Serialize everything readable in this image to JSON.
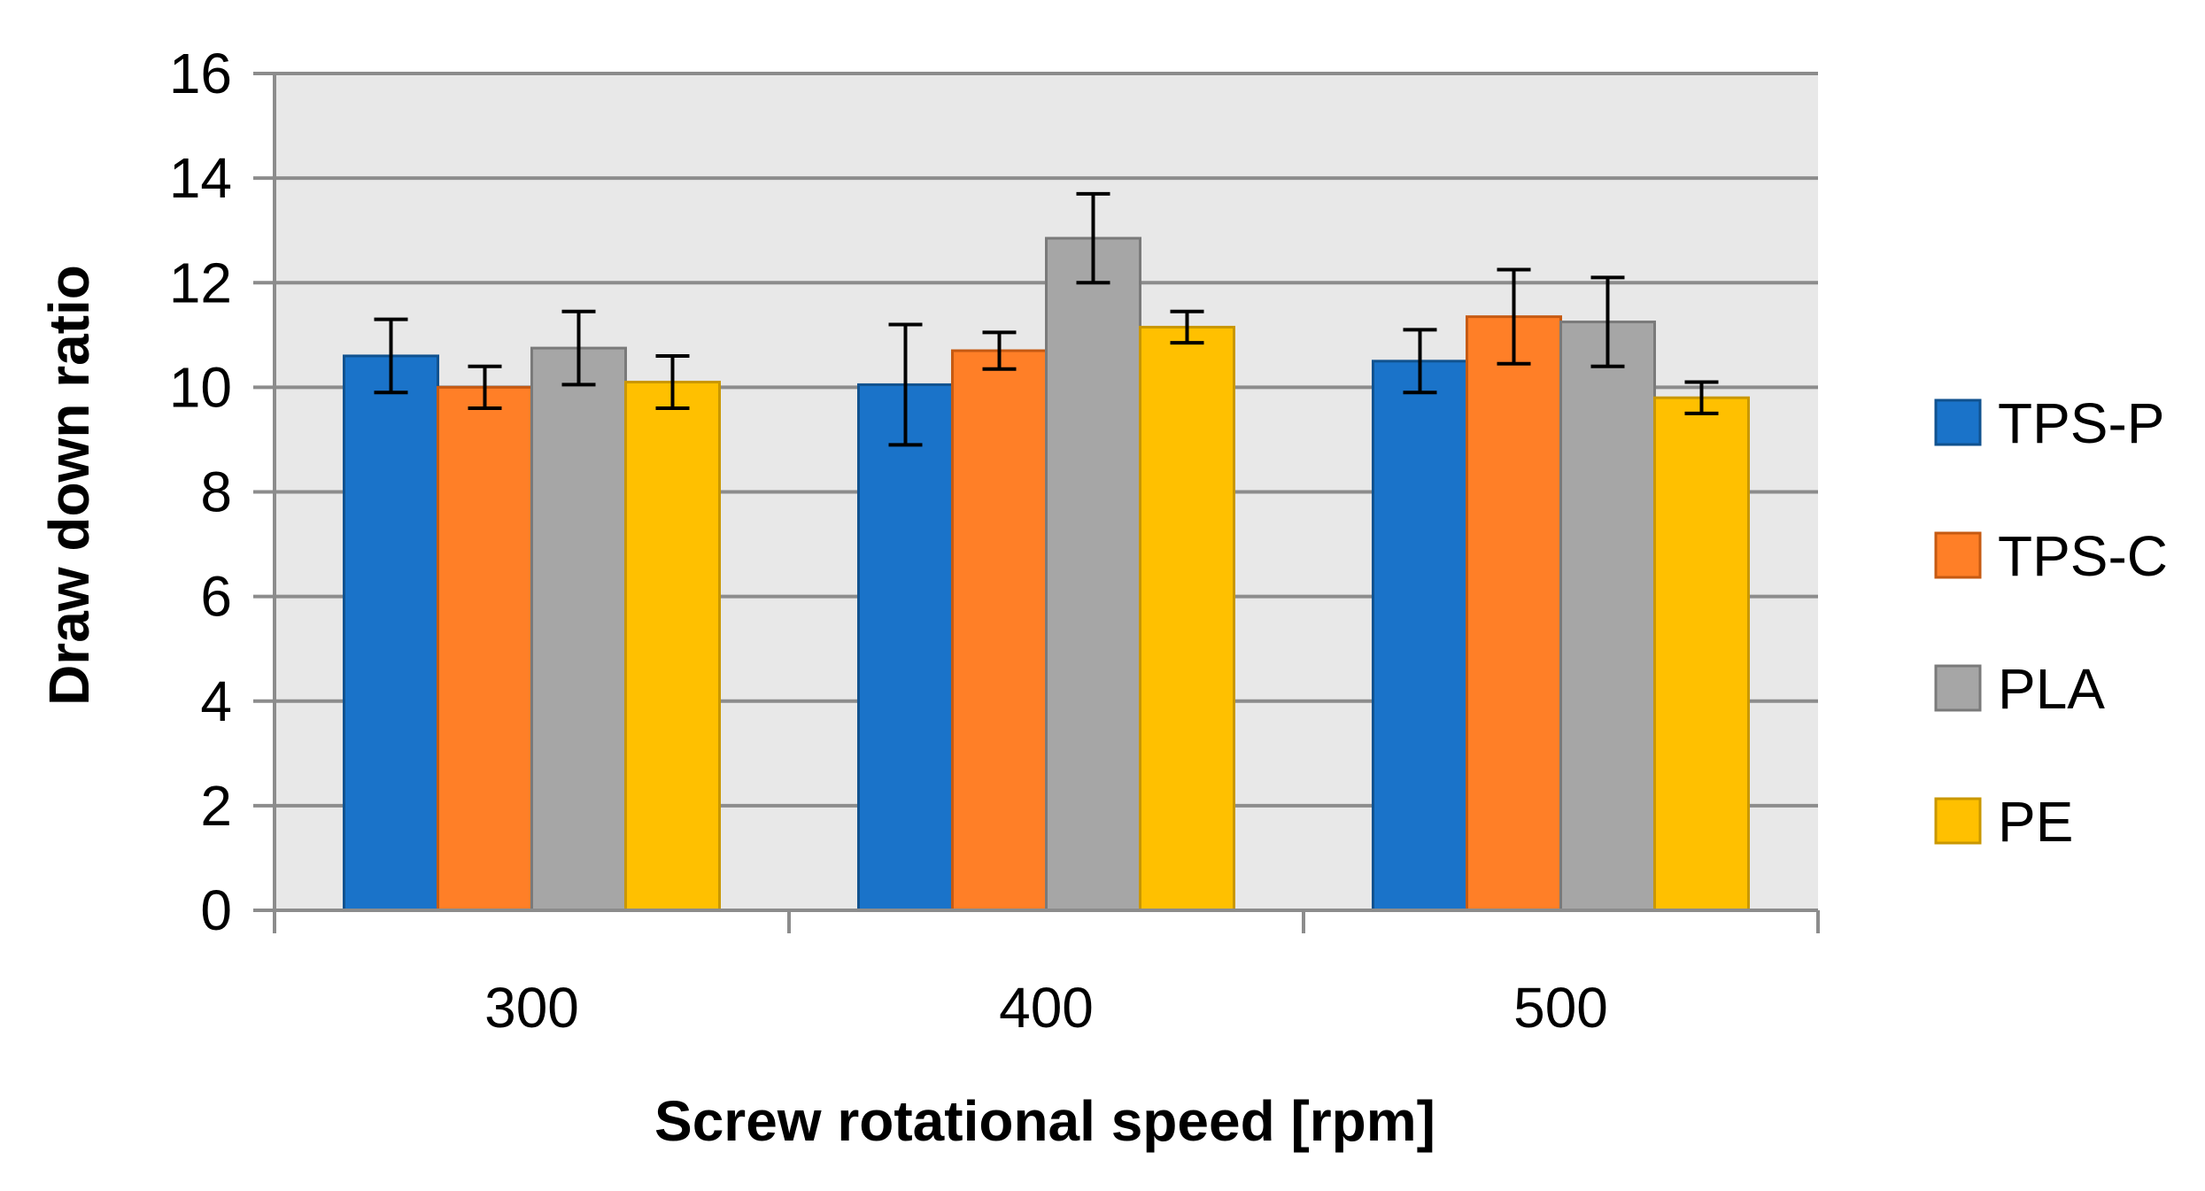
{
  "chart_data": {
    "type": "bar",
    "title": "",
    "xlabel": "Screw rotational speed [rpm]",
    "ylabel": "Draw down ratio",
    "categories": [
      "300",
      "400",
      "500"
    ],
    "ylim": [
      0,
      16
    ],
    "yticks": [
      "0",
      "2",
      "4",
      "6",
      "8",
      "10",
      "12",
      "14",
      "16"
    ],
    "grid": true,
    "legend_position": "right",
    "series": [
      {
        "name": "TPS-P",
        "values": [
          10.6,
          10.05,
          10.5
        ],
        "errors": [
          0.7,
          1.15,
          0.6
        ],
        "color": "#1a73c9",
        "edge": "#10528f"
      },
      {
        "name": "TPS-C",
        "values": [
          10.0,
          10.7,
          11.35
        ],
        "errors": [
          0.4,
          0.35,
          0.9
        ],
        "color": "#ff7f27",
        "edge": "#c65a12"
      },
      {
        "name": "PLA",
        "values": [
          10.75,
          12.85,
          11.25
        ],
        "errors": [
          0.7,
          0.85,
          0.85
        ],
        "color": "#a6a6a6",
        "edge": "#7a7a7a"
      },
      {
        "name": "PE",
        "values": [
          10.1,
          11.15,
          9.8
        ],
        "errors": [
          0.5,
          0.3,
          0.3
        ],
        "color": "#ffc000",
        "edge": "#c99700"
      }
    ],
    "plot_background": "#e8e8e8",
    "grid_color": "#8c8c8c"
  }
}
